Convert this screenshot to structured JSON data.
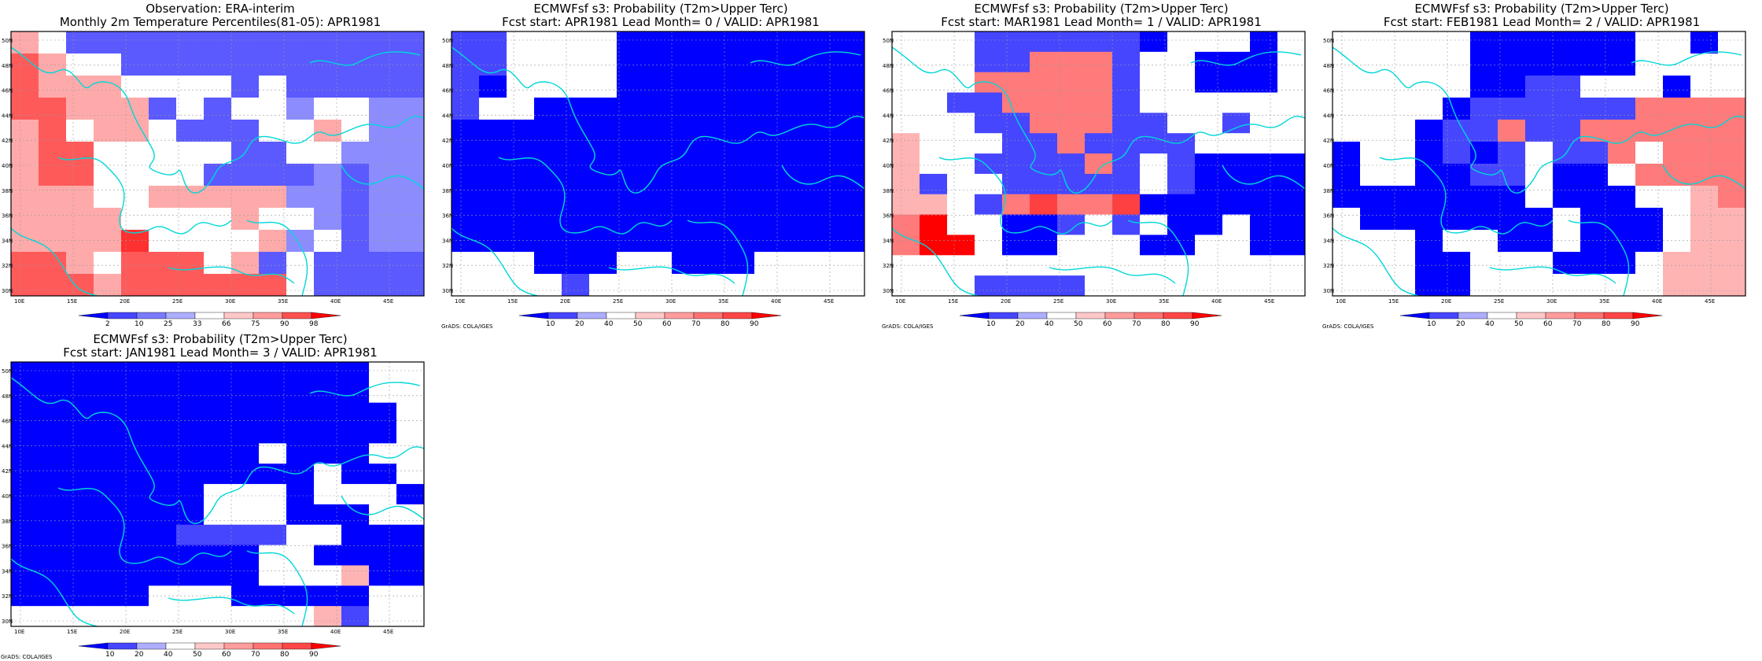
{
  "colors": {
    "blue_scale": [
      "#0000ff",
      "#4646ff",
      "#7a7aff",
      "#aeaeff"
    ],
    "red_scale": [
      "#ffc8c8",
      "#ff9c9c",
      "#ff7272",
      "#ff4646",
      "#ff0000"
    ],
    "coast": "#00d7d7"
  },
  "map_ticks": {
    "lon_labels": [
      "10E",
      "15E",
      "20E",
      "25E",
      "30E",
      "35E",
      "40E",
      "45E"
    ],
    "lat_labels": [
      "50N",
      "48N",
      "46N",
      "44N",
      "42N",
      "40N",
      "38N",
      "36N",
      "34N",
      "32N",
      "30N"
    ]
  },
  "panels": [
    {
      "title1": "Observation: ERA-interim",
      "title2": "Monthly 2m Temperature Percentiles(81-05): APR1981",
      "credit": "",
      "colorbar": {
        "labels": [
          "2",
          "10",
          "25",
          "33",
          "66",
          "75",
          "90",
          "98"
        ],
        "colors": [
          "#0000ff",
          "#4646ff",
          "#7a7aff",
          "#aeaeff",
          "#ffffff",
          "#ffc8c8",
          "#ff9c9c",
          "#ff5050",
          "#ff0000"
        ]
      },
      "grid": [
        "W.LLLLLLLLLLLLL",
        "DW..LLLLLLLLLLL",
        "DWWW....L.LLLLL",
        "DDWWWL.L..P..PP",
        "WD.WW.LLL..W.PP",
        "WDD.....LL..PPP",
        "WDD....LLLLPLPP",
        "WWW..WWWWWPPLPP",
        "WWWW....W..PLPP",
        "WWWWR....WP.LPP",
        "DDW.DDD.WL.LLLL",
        "DDDWDDDDDD.LLLL"
      ]
    },
    {
      "title1": "ECMWFsf s3: Probability (T2m>Upper Terc)",
      "title2": "Fcst start: APR1981   Lead Month= 0 / VALID: APR1981",
      "credit": "GrADS: COLA/IGES",
      "colorbar": {
        "labels": [
          "10",
          "20",
          "40",
          "50",
          "60",
          "70",
          "80",
          "90"
        ],
        "colors": [
          "#0000ff",
          "#4646ff",
          "#aeaeff",
          "#ffffff",
          "#ffc8c8",
          "#ff9c9c",
          "#ff7272",
          "#ff4646",
          "#ff0000"
        ]
      },
      "grid": [
        "WW....BBBBBBBBB",
        "WW....BBBBBBBBB",
        "WB....BBBBBBBBB",
        "W..BBBBBBBBBBBB",
        "BBBBBBBBBBBBBBB",
        "BBBBBBBBBBBBBBB",
        "BBBBBBBBBBBBBBB",
        "BBBBBBBBBBBBBBB",
        "BBBBBBBBBBBBBBB",
        "BBBBBBBBBBBBBBB",
        "...BBB..BBB....",
        "....W.........."
      ]
    },
    {
      "title1": "ECMWFsf s3: Probability (T2m>Upper Terc)",
      "title2": "Fcst start: MAR1981   Lead Month= 1 / VALID: APR1981",
      "credit": "GrADS: COLA/IGES",
      "colorbar": {
        "labels": [
          "10",
          "20",
          "40",
          "50",
          "60",
          "70",
          "80",
          "90"
        ],
        "colors": [
          "#0000ff",
          "#4646ff",
          "#aeaeff",
          "#ffffff",
          "#ffc8c8",
          "#ff9c9c",
          "#ff7272",
          "#ff4646",
          "#ff0000"
        ]
      },
      "grid": [
        "...WWWWWWB...B.",
        "...WWMMMW..BBB.",
        "...MMMMMW..BBB.",
        "..WWMMMMW......",
        "...WWMMMWW..W..",
        "L...WWMWWWW....",
        "L..WWWWMW.WBBBB",
        "LW..WWWWW.WBBBB",
        "LL.WMSMMSBBBBBB",
        "MR..BBW.W.BB.BB",
        "MRR.BB...BB..BB",
        "...............",
        "...WWWW........"
      ]
    },
    {
      "title1": "ECMWFsf s3: Probability (T2m>Upper Terc)",
      "title2": "Fcst start: FEB1981   Lead Month= 2 / VALID: APR1981",
      "credit": "GrADS: COLA/IGES",
      "colorbar": {
        "labels": [
          "10",
          "20",
          "40",
          "50",
          "60",
          "70",
          "80",
          "90"
        ],
        "colors": [
          "#0000ff",
          "#4646ff",
          "#aeaeff",
          "#ffffff",
          "#ffc8c8",
          "#ff9c9c",
          "#ff7272",
          "#ff4646",
          "#ff0000"
        ]
      },
      "grid": [
        ".....BBBBBB..B.",
        ".....BBBBBB....",
        ".....BBWW...B..",
        "....BWWWWWWMMMM",
        "...BWWMWWMMMMMM",
        "B..BWBW.WWM.MMM",
        "B..BBWW.BB.MMMM",
        "BBBBBBB.BBB..LM",
        ".BBBBBBB.BBB.LL",
        "...B..BB.BBB.LL",
        "...BB...BBB.LLL",
        "...BB.......LLL"
      ]
    },
    {
      "title1": "ECMWFsf s3: Probability (T2m>Upper Terc)",
      "title2": "Fcst start: JAN1981   Lead Month= 3 / VALID: APR1981",
      "credit": "GrADS: COLA/IGES",
      "colorbar": {
        "labels": [
          "10",
          "20",
          "40",
          "50",
          "60",
          "70",
          "80",
          "90"
        ],
        "colors": [
          "#0000ff",
          "#4646ff",
          "#aeaeff",
          "#ffffff",
          "#ffc8c8",
          "#ff9c9c",
          "#ff7272",
          "#ff4646",
          "#ff0000"
        ]
      },
      "grid": [
        "BBBBBBBBBBBBB..",
        "BBBBBBBBBBBBB..",
        "BBBBBBBBBBBBBB.",
        "BBBBBBBBBBBBBB.",
        "BBBBBBBBB.BBB..",
        "BBBBBBBBBBB.BB.",
        "BBBBBBB...B...B",
        "BBBBBBB...BBB..",
        "BBBBBBWWWW..BBB",
        "BBBBBBBBB..BBBB",
        "BBBBBBBBB...LBB",
        "BBBBB...BBBBB..",
        "...........LW.."
      ]
    }
  ]
}
